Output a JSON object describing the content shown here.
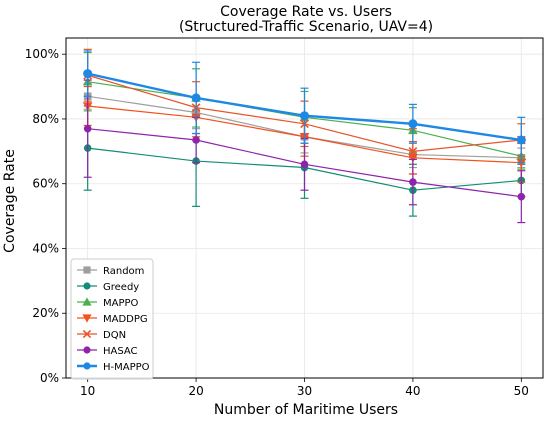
{
  "chart_data": {
    "type": "line",
    "title": "Coverage Rate vs. Users",
    "subtitle": "(Structured-Traffic Scenario, UAV=4)",
    "xlabel": "Number of Maritime Users",
    "ylabel": "Coverage Rate",
    "x": [
      10,
      20,
      30,
      40,
      50
    ],
    "x_ticks": [
      "10",
      "20",
      "30",
      "40",
      "50"
    ],
    "xlim": [
      8,
      52
    ],
    "ylim": [
      0,
      1.05
    ],
    "y_ticks": [
      "0%",
      "20%",
      "40%",
      "60%",
      "80%",
      "100%"
    ],
    "y_tick_values": [
      0,
      0.2,
      0.4,
      0.6,
      0.8,
      1.0
    ],
    "grid": true,
    "legend_position": "lower-left",
    "series": [
      {
        "name": "Random",
        "color": "#9e9e9e",
        "marker": "square",
        "values": [
          0.87,
          0.82,
          0.745,
          0.69,
          0.68
        ],
        "errors": [
          0.04,
          0.05,
          0.05,
          0.04,
          0.03
        ],
        "linewidth": 1.2
      },
      {
        "name": "Greedy",
        "color": "#138d75",
        "marker": "circle",
        "values": [
          0.71,
          0.67,
          0.65,
          0.58,
          0.61
        ],
        "errors": [
          0.13,
          0.14,
          0.095,
          0.08,
          0.05
        ],
        "linewidth": 1.2
      },
      {
        "name": "MAPPO",
        "color": "#4caf50",
        "marker": "triangle-up",
        "values": [
          0.915,
          0.865,
          0.805,
          0.765,
          0.685
        ],
        "errors": [
          0.09,
          0.09,
          0.08,
          0.07,
          0.04
        ],
        "linewidth": 1.2
      },
      {
        "name": "MADDPG",
        "color": "#f4511e",
        "marker": "triangle-down",
        "values": [
          0.84,
          0.805,
          0.745,
          0.68,
          0.665
        ],
        "errors": [
          0.06,
          0.06,
          0.06,
          0.05,
          0.06
        ],
        "linewidth": 1.2
      },
      {
        "name": "DQN",
        "color": "#e8542b",
        "marker": "x",
        "values": [
          0.935,
          0.835,
          0.785,
          0.7,
          0.735
        ],
        "errors": [
          0.08,
          0.08,
          0.07,
          0.07,
          0.05
        ],
        "linewidth": 1.2
      },
      {
        "name": "HASAC",
        "color": "#8e24aa",
        "marker": "circle",
        "values": [
          0.77,
          0.735,
          0.66,
          0.605,
          0.56
        ],
        "errors": [
          0.15,
          0.07,
          0.08,
          0.07,
          0.08
        ],
        "linewidth": 1.2
      },
      {
        "name": "H-MAPPO",
        "color": "#1e88e5",
        "marker": "circle",
        "values": [
          0.94,
          0.865,
          0.81,
          0.785,
          0.735
        ],
        "errors": [
          0.07,
          0.11,
          0.085,
          0.06,
          0.07
        ],
        "linewidth": 2.4
      }
    ]
  }
}
